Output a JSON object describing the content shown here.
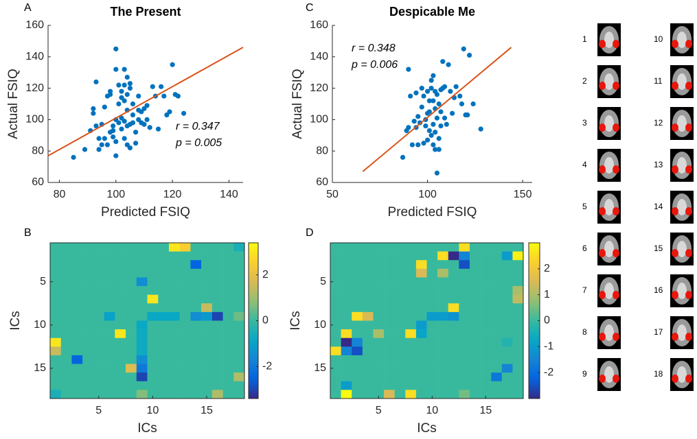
{
  "chart_data": [
    {
      "type": "scatter",
      "panel": "A",
      "title": "The Present",
      "xlabel": "Predicted FSIQ",
      "ylabel": "Actual FSIQ",
      "xlim": [
        76,
        145
      ],
      "xticks": [
        80,
        100,
        120,
        140
      ],
      "ylim": [
        60,
        160
      ],
      "yticks": [
        60,
        80,
        100,
        120,
        140,
        160
      ],
      "color": "#0072bd",
      "x": [
        85,
        89,
        91,
        92,
        92,
        93,
        93,
        94,
        94,
        95,
        95,
        96,
        97,
        97,
        98,
        98,
        98,
        99,
        99,
        100,
        100,
        100,
        100,
        100,
        101,
        101,
        101,
        102,
        102,
        102,
        102,
        103,
        103,
        103,
        103,
        103,
        104,
        104,
        104,
        104,
        104,
        105,
        105,
        105,
        106,
        106,
        106,
        107,
        107,
        108,
        108,
        108,
        109,
        109,
        110,
        110,
        111,
        111,
        112,
        113,
        114,
        115,
        116,
        117,
        118,
        119,
        120,
        121,
        122,
        124,
        105,
        99,
        96
      ],
      "values": [
        76,
        81,
        93,
        107,
        104,
        124,
        96,
        88,
        81,
        84,
        97,
        88,
        115,
        84,
        118,
        116,
        92,
        89,
        96,
        145,
        132,
        100,
        86,
        77,
        122,
        110,
        98,
        118,
        114,
        101,
        94,
        132,
        122,
        112,
        99,
        88,
        127,
        116,
        106,
        96,
        84,
        123,
        120,
        97,
        110,
        103,
        98,
        92,
        85,
        115,
        106,
        100,
        105,
        98,
        107,
        97,
        109,
        100,
        95,
        121,
        115,
        94,
        121,
        115,
        103,
        105,
        135,
        116,
        115,
        104,
        82,
        93,
        108
      ],
      "fit": {
        "x": [
          76,
          145
        ],
        "values": [
          77,
          146
        ],
        "color": "#d95319"
      },
      "annotations": [
        "r = 0.347",
        "p = 0.005"
      ]
    },
    {
      "type": "scatter",
      "panel": "C",
      "title": "Despicable Me",
      "xlabel": "Predicted FSIQ",
      "ylabel": "Actual FSIQ",
      "xlim": [
        50,
        155
      ],
      "xticks": [
        50,
        100,
        150
      ],
      "ylim": [
        60,
        160
      ],
      "yticks": [
        60,
        80,
        100,
        120,
        140,
        160
      ],
      "color": "#0072bd",
      "x": [
        87,
        89,
        90,
        90,
        91,
        92,
        93,
        94,
        94,
        95,
        95,
        96,
        97,
        97,
        98,
        98,
        99,
        99,
        100,
        100,
        100,
        101,
        101,
        101,
        102,
        102,
        102,
        103,
        103,
        103,
        103,
        104,
        104,
        104,
        104,
        105,
        105,
        105,
        106,
        106,
        106,
        107,
        107,
        107,
        108,
        108,
        109,
        109,
        110,
        111,
        112,
        113,
        114,
        115,
        117,
        118,
        119,
        120,
        121,
        122,
        124,
        128
      ],
      "values": [
        76,
        93,
        95,
        132,
        115,
        84,
        99,
        117,
        95,
        102,
        84,
        98,
        120,
        108,
        115,
        85,
        100,
        96,
        118,
        104,
        87,
        112,
        105,
        93,
        125,
        120,
        90,
        128,
        112,
        97,
        84,
        118,
        107,
        92,
        81,
        116,
        101,
        66,
        110,
        88,
        81,
        119,
        105,
        96,
        137,
        120,
        121,
        101,
        97,
        135,
        118,
        104,
        114,
        121,
        115,
        110,
        145,
        103,
        103,
        141,
        110,
        94
      ],
      "fit": {
        "x": [
          66,
          144
        ],
        "values": [
          67,
          146
        ],
        "color": "#d95319"
      },
      "annotations": [
        "r = 0.348",
        "p = 0.006"
      ]
    },
    {
      "type": "heatmap",
      "panel": "B",
      "xlabel": "ICs",
      "ylabel": "ICs",
      "colormap": "parula",
      "xlim": [
        0.5,
        18.5
      ],
      "ylim": [
        0.5,
        18.5
      ],
      "y_reversed": true,
      "xticks": [
        5,
        10,
        15
      ],
      "yticks": [
        5,
        10,
        15
      ],
      "clim": [
        -3.4,
        3.4
      ],
      "cticks": [
        -2,
        0,
        2
      ],
      "z": [
        [
          0,
          0,
          0,
          0,
          0,
          0,
          0,
          0,
          0,
          0,
          0,
          3,
          2.5,
          0,
          0,
          0,
          0,
          -0.5
        ],
        [
          0,
          0,
          0,
          0,
          0,
          0,
          0,
          0,
          0,
          0,
          0,
          0,
          0,
          0,
          0,
          0,
          0,
          0
        ],
        [
          0,
          0,
          0,
          0,
          0,
          0,
          0,
          0,
          0,
          0,
          0,
          0,
          0,
          -2.5,
          0,
          0,
          0,
          0
        ],
        [
          0,
          0,
          0,
          0,
          0,
          0,
          0,
          0,
          0,
          0,
          0,
          0,
          0,
          0,
          0,
          0,
          0,
          0
        ],
        [
          0,
          0,
          0,
          0,
          0,
          0,
          0,
          0,
          -1.5,
          0,
          0,
          0,
          0,
          0,
          0,
          0,
          0,
          0
        ],
        [
          0,
          0,
          0,
          0,
          0,
          0,
          0,
          0,
          0,
          0,
          0,
          0,
          0,
          0,
          0,
          0,
          0,
          0
        ],
        [
          0,
          0,
          0,
          0,
          0,
          0,
          0,
          0,
          0,
          3,
          0,
          0,
          0,
          0,
          0,
          0,
          0,
          0
        ],
        [
          0,
          0,
          0,
          0,
          0,
          0,
          0,
          0,
          0,
          0,
          0,
          0,
          0,
          0,
          1.5,
          0,
          0,
          0
        ],
        [
          0,
          0,
          0,
          0,
          0,
          -1,
          0,
          0,
          0,
          -0.8,
          -0.8,
          -0.8,
          0,
          -1.5,
          -1.2,
          -3,
          0,
          0.5
        ],
        [
          0,
          0,
          0,
          0,
          0,
          0,
          0,
          0,
          -0.8,
          0,
          0,
          0,
          0,
          0,
          0,
          0,
          0,
          0
        ],
        [
          0,
          0,
          0,
          0,
          0,
          0,
          3,
          0,
          -0.7,
          0,
          0,
          0,
          0,
          0,
          0,
          0,
          0,
          0
        ],
        [
          3,
          0,
          0,
          0,
          0,
          0,
          0,
          0,
          -0.7,
          0,
          0,
          0,
          0,
          0,
          0,
          0,
          0,
          0
        ],
        [
          1.5,
          0,
          0,
          0,
          0,
          0,
          0,
          0,
          -0.7,
          0,
          0,
          0,
          0,
          0,
          0,
          0,
          0,
          0
        ],
        [
          0,
          0,
          -2.5,
          0,
          0,
          0,
          0,
          0,
          -1.5,
          0,
          0,
          0,
          0,
          0,
          0,
          0,
          0,
          0
        ],
        [
          0,
          0,
          0,
          0,
          0,
          0,
          0,
          1.8,
          -2,
          0,
          0,
          0,
          0,
          0,
          0,
          0,
          0,
          0
        ],
        [
          0,
          0,
          0,
          0,
          0,
          0,
          0,
          0,
          -3,
          0,
          0,
          0,
          0,
          0,
          0,
          0,
          0,
          1.2
        ],
        [
          0,
          0,
          0,
          0,
          0,
          0,
          0,
          0,
          0,
          0,
          0,
          0,
          0,
          0,
          0,
          0,
          0,
          0
        ],
        [
          -0.5,
          0,
          0,
          0,
          0,
          0,
          0,
          0,
          0.7,
          0,
          0,
          0,
          0,
          0,
          0,
          1.2,
          0,
          0
        ]
      ]
    },
    {
      "type": "heatmap",
      "panel": "D",
      "xlabel": "ICs",
      "ylabel": "ICs",
      "colormap": "parula",
      "xlim": [
        0.5,
        18.5
      ],
      "ylim": [
        0.5,
        18.5
      ],
      "y_reversed": true,
      "xticks": [
        5,
        10,
        15
      ],
      "yticks": [
        5,
        10,
        15
      ],
      "clim": [
        -3,
        3
      ],
      "cticks": [
        -2,
        -1,
        0,
        1,
        2
      ],
      "z": [
        [
          0,
          0,
          0,
          0,
          0,
          0,
          0,
          0,
          0,
          0,
          0,
          0,
          2.5,
          0,
          0,
          0,
          0,
          0
        ],
        [
          0,
          0,
          0,
          0,
          0,
          0,
          0,
          0,
          0,
          0,
          2.5,
          -3,
          -1.5,
          0,
          0,
          0,
          -1,
          2.8
        ],
        [
          0,
          0,
          0,
          0,
          0,
          0,
          0,
          0,
          2.5,
          0,
          0,
          0,
          -2.5,
          0,
          0,
          0,
          0,
          0
        ],
        [
          0,
          0,
          0,
          0,
          0,
          0,
          0,
          0,
          1.5,
          0,
          1,
          0,
          0,
          0,
          0,
          0,
          0,
          0
        ],
        [
          0,
          0,
          0,
          0,
          0,
          0,
          0,
          0,
          0,
          0,
          0,
          0,
          0,
          0,
          0,
          0,
          0,
          0
        ],
        [
          0,
          0,
          0,
          0,
          0,
          0,
          0,
          0,
          0,
          0,
          0,
          0,
          0,
          0,
          0,
          0,
          0,
          1
        ],
        [
          0,
          0,
          0,
          0,
          0,
          0,
          0,
          0,
          0,
          0,
          0,
          0,
          0,
          0,
          0,
          0,
          0,
          1.2
        ],
        [
          0,
          0,
          0,
          0,
          0,
          0,
          0,
          0,
          0,
          0,
          0,
          2.5,
          0,
          0,
          0,
          0,
          0,
          0
        ],
        [
          0,
          0,
          2.5,
          1.5,
          0,
          0,
          0,
          0,
          0,
          -1,
          -1,
          -1.2,
          0,
          0,
          0,
          0,
          0,
          0
        ],
        [
          0,
          0,
          0,
          0,
          0,
          0,
          0,
          0,
          -1,
          0,
          0,
          0,
          0,
          0,
          0,
          0,
          0,
          0
        ],
        [
          0,
          2.5,
          0,
          0,
          1,
          0,
          0,
          2.5,
          -0.8,
          0,
          0,
          0,
          0,
          0,
          0,
          0,
          0,
          0
        ],
        [
          0,
          -3,
          -1.5,
          0,
          0,
          0,
          0,
          0,
          0,
          0,
          0,
          0,
          0,
          0,
          0,
          0,
          -0.3,
          0
        ],
        [
          2.5,
          -1.5,
          -2.5,
          0,
          0,
          0,
          0,
          0,
          0,
          0,
          0,
          0,
          0,
          0,
          0,
          0,
          0,
          0
        ],
        [
          0,
          0,
          0,
          0,
          0,
          0,
          0,
          0,
          0,
          0,
          0,
          0,
          0,
          0,
          0,
          0,
          0,
          0
        ],
        [
          0,
          0,
          0,
          0,
          0,
          0,
          0,
          0,
          0,
          0,
          0,
          0,
          0,
          0,
          0,
          0,
          -1.5,
          0
        ],
        [
          0,
          0,
          0,
          0,
          0,
          0,
          0,
          0,
          0,
          0,
          0,
          0,
          0,
          0,
          0,
          -1.8,
          0,
          0
        ],
        [
          0,
          -1,
          0,
          0,
          0,
          0,
          0,
          0,
          0,
          0,
          0,
          0,
          0,
          0,
          0,
          0,
          0,
          0
        ],
        [
          0,
          3,
          0,
          0,
          0,
          1.5,
          0,
          2.5,
          0,
          0,
          0,
          0,
          0.5,
          0,
          0,
          0,
          0,
          0
        ]
      ]
    }
  ],
  "components": {
    "labels": [
      1,
      2,
      3,
      4,
      5,
      6,
      7,
      8,
      9,
      10,
      11,
      12,
      13,
      14,
      15,
      16,
      17,
      18
    ]
  }
}
